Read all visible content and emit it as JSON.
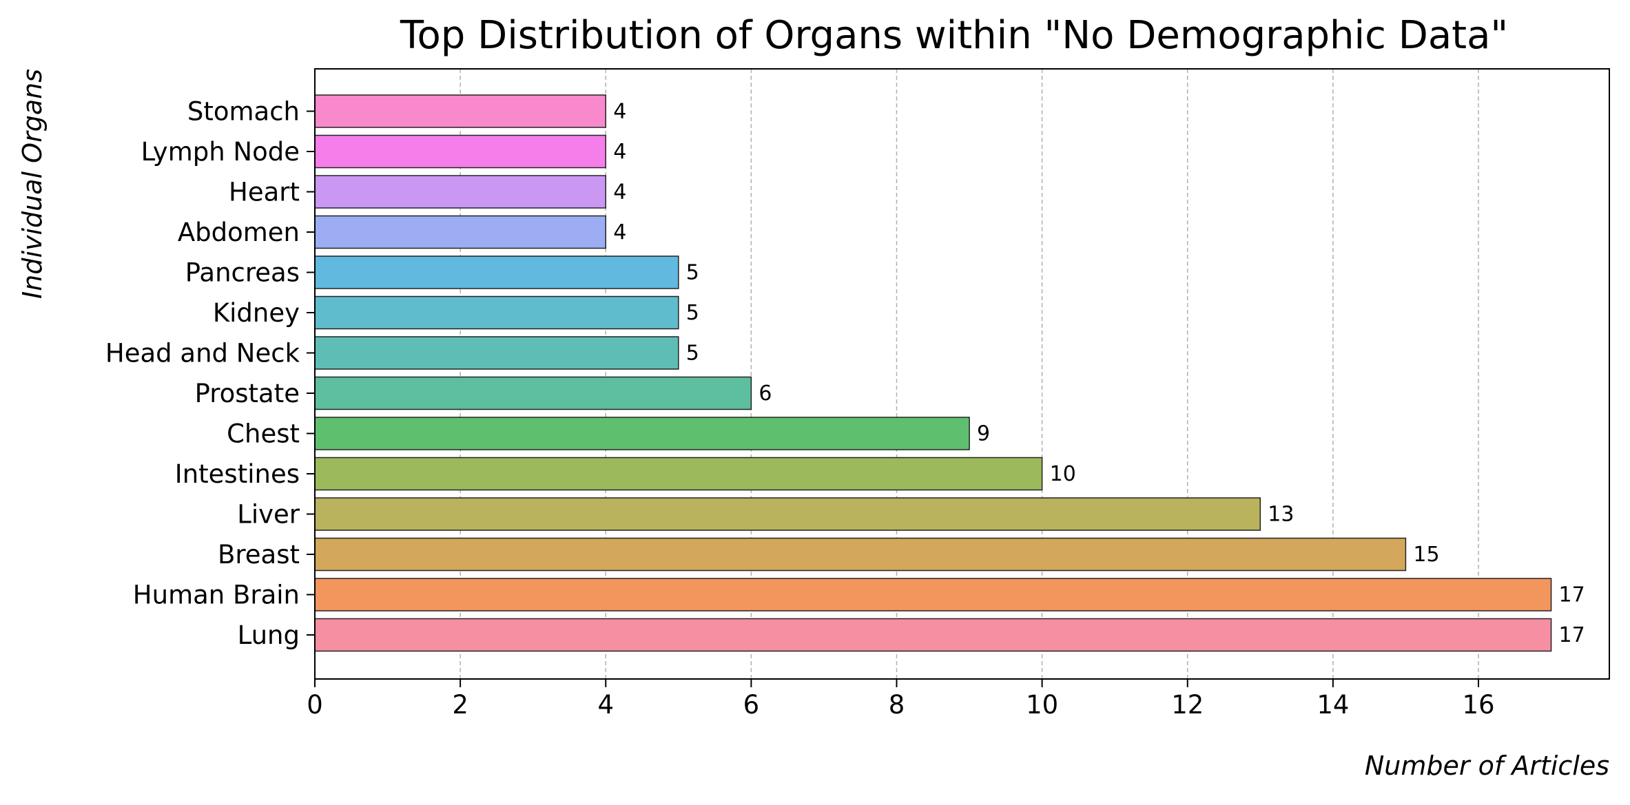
{
  "chart_data": {
    "type": "bar",
    "orientation": "horizontal",
    "title": "Top Distribution of Organs within \"No Demographic Data\"",
    "xlabel": "Number of Articles",
    "ylabel": "Individual Organs",
    "xlim": [
      0,
      17.8
    ],
    "xticks": [
      0,
      2,
      4,
      6,
      8,
      10,
      12,
      14,
      16
    ],
    "grid": "vertical dashed",
    "legend": "none",
    "categories": [
      "Lung",
      "Human Brain",
      "Breast",
      "Liver",
      "Intestines",
      "Chest",
      "Prostate",
      "Head and Neck",
      "Kidney",
      "Pancreas",
      "Abdomen",
      "Heart",
      "Lymph Node",
      "Stomach"
    ],
    "values": [
      17,
      17,
      15,
      13,
      10,
      9,
      6,
      5,
      5,
      5,
      4,
      4,
      4,
      4
    ],
    "data_labels": [
      "17",
      "17",
      "15",
      "13",
      "10",
      "9",
      "6",
      "5",
      "5",
      "5",
      "4",
      "4",
      "4",
      "4"
    ],
    "colors": [
      "#f78fa2",
      "#f3965d",
      "#d3a75c",
      "#bab35d",
      "#9cba5c",
      "#5ec06f",
      "#5ebfa0",
      "#5ebeb6",
      "#5fbccc",
      "#61b9df",
      "#9cadf3",
      "#ca98f3",
      "#f57eeb",
      "#f789cc"
    ]
  }
}
